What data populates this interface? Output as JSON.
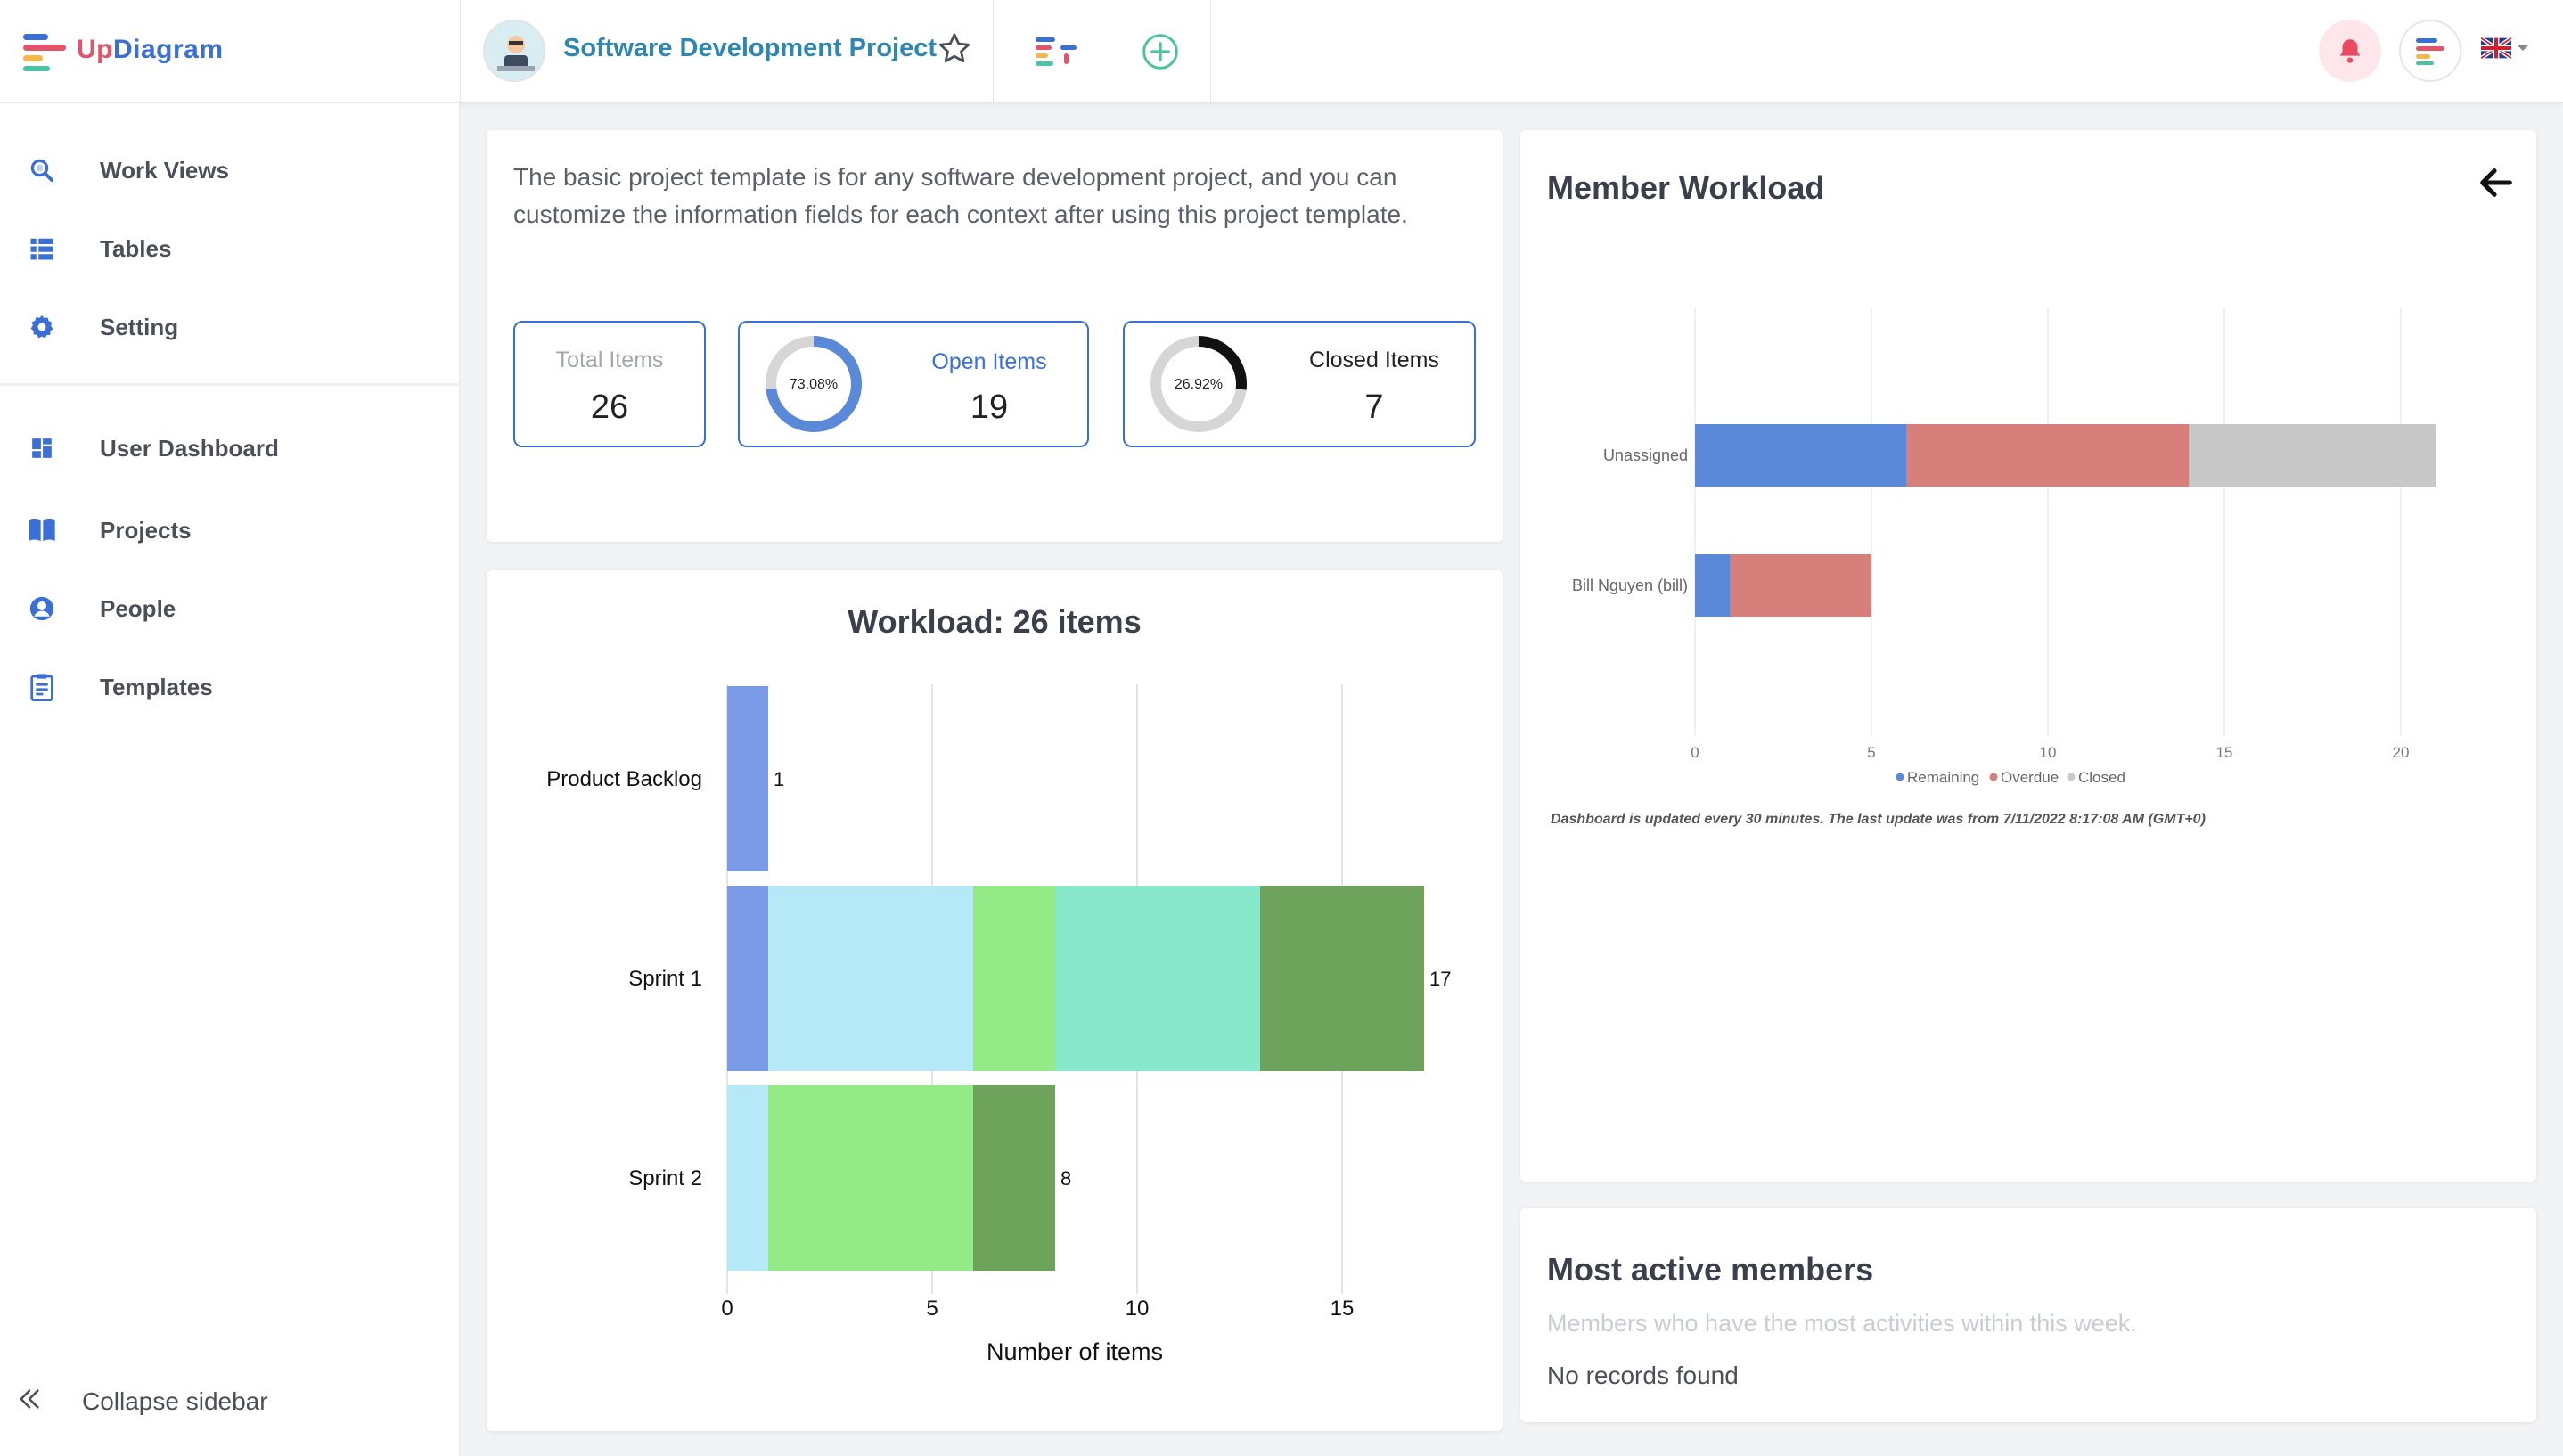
{
  "brand": {
    "name_prefix": "Up",
    "name_suffix": "Diagram"
  },
  "header": {
    "project_title": "Software Development Project"
  },
  "sidebar": {
    "items": [
      {
        "label": "Work Views",
        "icon": "search-icon"
      },
      {
        "label": "Tables",
        "icon": "list-icon"
      },
      {
        "label": "Setting",
        "icon": "gear-icon"
      },
      {
        "label": "User Dashboard",
        "icon": "dashboard-icon"
      },
      {
        "label": "Projects",
        "icon": "book-icon"
      },
      {
        "label": "People",
        "icon": "person-icon"
      },
      {
        "label": "Templates",
        "icon": "clipboard-icon"
      }
    ],
    "collapse_label": "Collapse sidebar"
  },
  "overview": {
    "description": "The basic project template is for any software development project, and you can customize the information fields for each context after using this project template.",
    "total": {
      "label": "Total Items",
      "value": "26"
    },
    "open": {
      "label": "Open Items",
      "value": "19",
      "percent_label": "73.08%",
      "percent": 73.08
    },
    "closed": {
      "label": "Closed Items",
      "value": "7",
      "percent_label": "26.92%",
      "percent": 26.92
    }
  },
  "chart_data": [
    {
      "type": "bar",
      "orientation": "horizontal",
      "stacked": true,
      "title": "Workload: 26 items",
      "xlabel": "Number of items",
      "ylabel": "",
      "xlim": [
        0,
        17
      ],
      "xticks": [
        "0",
        "5",
        "10",
        "15"
      ],
      "categories": [
        "Product Backlog",
        "Sprint 1",
        "Sprint 2"
      ],
      "totals": [
        "1",
        "17",
        "8"
      ],
      "series": [
        {
          "values": [
            1,
            1,
            0
          ],
          "color": "#7b9ae8"
        },
        {
          "values": [
            0,
            5,
            1
          ],
          "color": "#b6e9f8"
        },
        {
          "values": [
            0,
            2,
            5
          ],
          "color": "#93ea87"
        },
        {
          "values": [
            0,
            5,
            0
          ],
          "color": "#87e8cc"
        },
        {
          "values": [
            0,
            4,
            2
          ],
          "color": "#6ea35b"
        }
      ],
      "grid": true
    },
    {
      "type": "bar",
      "orientation": "horizontal",
      "stacked": true,
      "title": "",
      "xlabel": "",
      "ylabel": "",
      "xlim": [
        0,
        21
      ],
      "xticks": [
        "0",
        "5",
        "10",
        "15",
        "20"
      ],
      "categories": [
        "Unassigned",
        "Bill Nguyen (bill)"
      ],
      "series": [
        {
          "name": "Remaining",
          "values": [
            6,
            1
          ],
          "color": "#5b89d9"
        },
        {
          "name": "Overdue",
          "values": [
            8,
            4
          ],
          "color": "#d77f7b"
        },
        {
          "name": "Closed",
          "values": [
            7,
            0
          ],
          "color": "#c8c8c8"
        }
      ],
      "legend": "bottom",
      "grid": true
    }
  ],
  "member_workload": {
    "title": "Member Workload",
    "footnote": "Dashboard is updated every 30 minutes. The last update was from 7/11/2022 8:17:08 AM (GMT+0)"
  },
  "active_members": {
    "title": "Most active members",
    "subtitle": "Members who have the most activities within this week.",
    "empty": "No records found"
  }
}
